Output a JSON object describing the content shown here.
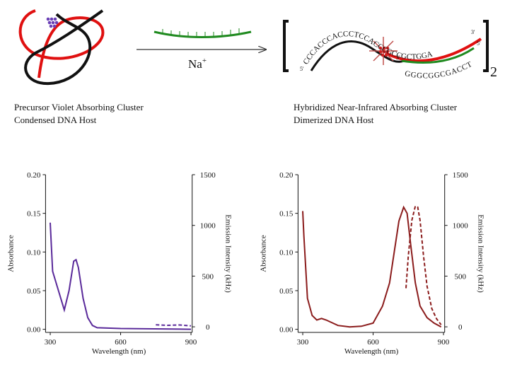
{
  "diagram": {
    "reagent": "Na",
    "reagent_charge": "+",
    "top_strand": "CCCACCCACCCTCCACCCGCCGCTGGA",
    "bottom_strand": "GGGCGGCGACCT",
    "five_prime": "5'",
    "three_prime": "3'",
    "multiplier": "2",
    "left_caption": [
      "Precursor Violet Absorbing Cluster",
      "Condensed DNA Host"
    ],
    "right_caption": [
      "Hybridized Near-Infrared Absorbing Cluster",
      "Dimerized DNA Host"
    ]
  },
  "chart_data": [
    {
      "type": "line",
      "xlabel": "Wavelength (nm)",
      "ylabel": "Absorbance",
      "y2label": "Emission Intensity (kHz)",
      "xlim": [
        280,
        905
      ],
      "xticks": [
        300,
        600,
        900
      ],
      "ylim": [
        -0.004,
        0.2
      ],
      "yticks": [
        {
          "value": 0,
          "label": "0.00"
        },
        {
          "value": 0.05,
          "label": "0.05"
        },
        {
          "value": 0.1,
          "label": "0.10"
        },
        {
          "value": 0.15,
          "label": "0.15"
        },
        {
          "value": 0.2,
          "label": "0.20"
        }
      ],
      "y2lim": [
        -55,
        1500
      ],
      "y2ticks": [
        0,
        500,
        1000,
        1500
      ],
      "series": [
        {
          "color": "#5a2a9a",
          "line_style": "solid",
          "x": [
            300,
            310,
            330,
            360,
            380,
            400,
            410,
            420,
            440,
            460,
            480,
            500,
            600,
            900
          ],
          "values": [
            0.138,
            0.075,
            0.055,
            0.025,
            0.05,
            0.088,
            0.09,
            0.08,
            0.04,
            0.015,
            0.005,
            0.002,
            0.001,
            0
          ]
        },
        {
          "color": "#5a2a9a",
          "line_style": "dashed",
          "axis": "y2",
          "x": [
            750,
            800,
            850,
            900
          ],
          "values": [
            20,
            15,
            18,
            10
          ]
        }
      ]
    },
    {
      "type": "line",
      "xlabel": "Wavelength (nm)",
      "ylabel": "Absorbance",
      "y2label": "Emission Intensity (kHz)",
      "xlim": [
        280,
        905
      ],
      "xticks": [
        300,
        600,
        900
      ],
      "ylim": [
        -0.004,
        0.2
      ],
      "yticks": [
        {
          "value": 0,
          "label": "0.00"
        },
        {
          "value": 0.05,
          "label": "0.05"
        },
        {
          "value": 0.1,
          "label": "0.10"
        },
        {
          "value": 0.15,
          "label": "0.15"
        },
        {
          "value": 0.2,
          "label": "0.20"
        }
      ],
      "y2lim": [
        -55,
        1500
      ],
      "y2ticks": [
        0,
        500,
        1000,
        1500
      ],
      "series": [
        {
          "color": "#8b1c1c",
          "line_style": "solid",
          "x": [
            300,
            305,
            320,
            340,
            360,
            380,
            400,
            450,
            500,
            550,
            600,
            640,
            670,
            690,
            710,
            730,
            745,
            760,
            780,
            800,
            830,
            860,
            890
          ],
          "values": [
            0.153,
            0.12,
            0.04,
            0.018,
            0.012,
            0.014,
            0.012,
            0.005,
            0.003,
            0.004,
            0.008,
            0.03,
            0.06,
            0.1,
            0.14,
            0.158,
            0.15,
            0.11,
            0.06,
            0.03,
            0.015,
            0.008,
            0.003
          ]
        },
        {
          "color": "#8b1c1c",
          "line_style": "dashed",
          "axis": "y2",
          "x": [
            740,
            750,
            765,
            780,
            790,
            800,
            815,
            830,
            850,
            870,
            890
          ],
          "values": [
            380,
            700,
            1050,
            1190,
            1180,
            1050,
            700,
            400,
            180,
            80,
            20
          ]
        }
      ]
    }
  ]
}
